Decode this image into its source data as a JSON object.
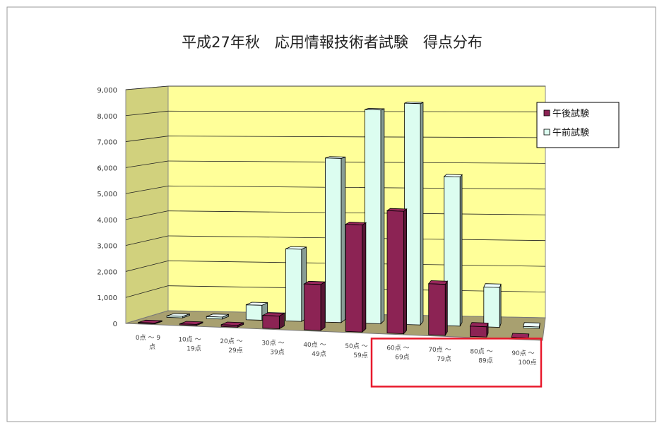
{
  "chart_data": {
    "type": "bar",
    "title": "平成27年秋　応用情報技術者試験　得点分布",
    "categories": [
      [
        "0点 ～ 9",
        "点"
      ],
      [
        "10点 ～",
        "19点"
      ],
      [
        "20点 ～",
        "29点"
      ],
      [
        "30点 ～",
        "39点"
      ],
      [
        "40点 ～",
        "49点"
      ],
      [
        "50点 ～",
        "59点"
      ],
      [
        "60点 ～",
        "69点"
      ],
      [
        "70点 ～",
        "79点"
      ],
      [
        "80点 ～",
        "89点"
      ],
      [
        "90点 ～",
        "100点"
      ]
    ],
    "series": [
      {
        "name": "午後試験",
        "color": "#8c2354",
        "values": [
          30,
          40,
          70,
          500,
          1800,
          4200,
          4800,
          2000,
          400,
          30
        ]
      },
      {
        "name": "午前試験",
        "color": "#dcfdf0",
        "values": [
          60,
          80,
          600,
          2900,
          6600,
          8600,
          8900,
          6000,
          1600,
          60
        ]
      }
    ],
    "y_ticks": [
      "9,000",
      "8,000",
      "7,000",
      "6,000",
      "5,000",
      "4,000",
      "3,000",
      "2,000",
      "1,000",
      "0"
    ],
    "ylim": [
      0,
      9000
    ],
    "grid": true,
    "legend": "right",
    "highlight_categories": [
      6,
      7,
      8,
      9
    ],
    "highlight_color": "#e8192c",
    "wall_color": "#ffff99",
    "floor_color": "#a8a070"
  }
}
